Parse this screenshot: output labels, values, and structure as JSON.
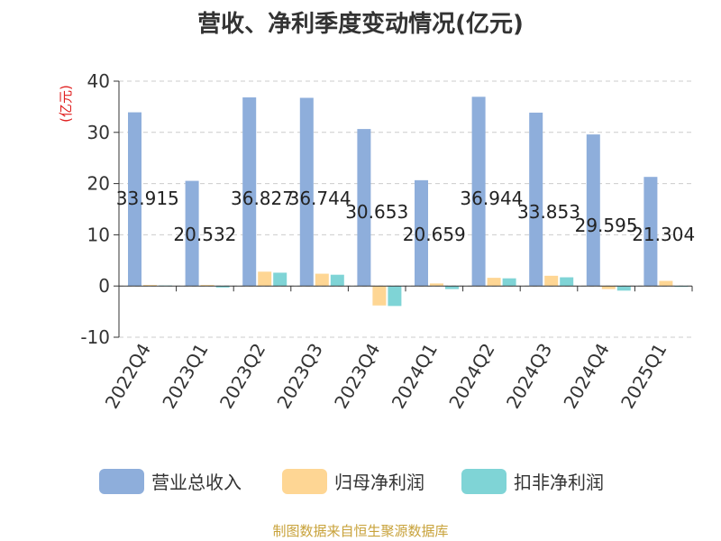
{
  "title": "营收、净利季度变动情况(亿元)",
  "footer": "制图数据来自恒生聚源数据库",
  "colors": {
    "revenue": "#8eaedb",
    "net_profit": "#fed694",
    "deducted_profit": "#7fd4d6",
    "y_unit": "#e02020",
    "source": "#c8a23a"
  },
  "chart_data": {
    "type": "bar",
    "title": "营收、净利季度变动情况(亿元)",
    "ylabel": "(亿元)",
    "ylim": [
      -10,
      40
    ],
    "yticks": [
      40,
      30,
      20,
      10,
      0,
      -10
    ],
    "grid": true,
    "legend_position": "bottom",
    "categories": [
      "2022Q4",
      "2023Q1",
      "2023Q2",
      "2023Q3",
      "2023Q4",
      "2024Q1",
      "2024Q2",
      "2024Q3",
      "2024Q4",
      "2025Q1"
    ],
    "series": [
      {
        "name": "营业总收入",
        "values": [
          33.915,
          20.532,
          36.827,
          36.744,
          30.653,
          20.659,
          36.944,
          33.853,
          29.595,
          21.304
        ],
        "labels": [
          "33.915",
          "20.532",
          "36.827",
          "36.744",
          "30.653",
          "20.659",
          "36.944",
          "33.853",
          "29.595",
          "21.304"
        ]
      },
      {
        "name": "归母净利润",
        "values": [
          0.2,
          0.2,
          2.8,
          2.4,
          -3.8,
          0.5,
          1.6,
          2.0,
          -0.6,
          1.0
        ]
      },
      {
        "name": "扣非净利润",
        "values": [
          0.1,
          -0.3,
          2.6,
          2.2,
          -3.9,
          -0.6,
          1.5,
          1.7,
          -0.9,
          0.0
        ]
      }
    ]
  }
}
